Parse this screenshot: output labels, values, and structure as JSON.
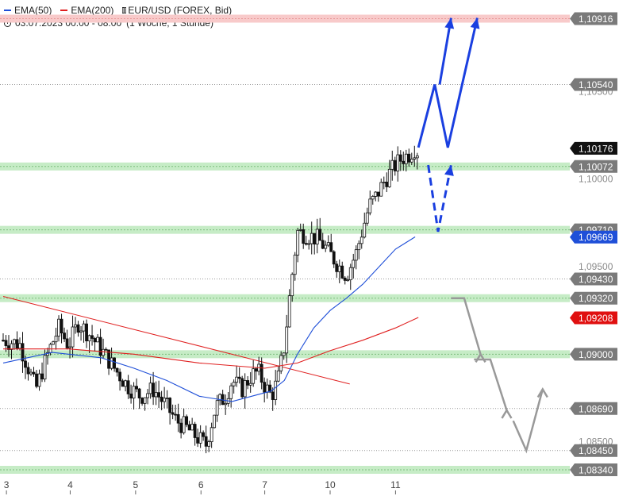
{
  "header": {
    "ema50_label": "EMA(50)",
    "ema200_label": "EMA(200)",
    "instrument": "EUR/USD (FOREX, Bid)",
    "period": "03.07.2023 00:00 - 08:00",
    "timeframe": "(1 Woche, 1 Stunde)"
  },
  "colors": {
    "ema50": "#1f4fd8",
    "ema200": "#e02020",
    "candle": "#111111",
    "support_zone": "#c6ecc6",
    "resistance_zone": "#f8caca",
    "forecast_up": "#1a3fe0",
    "forecast_down": "#999999",
    "last_price_bg": "#111111",
    "ema50_tag_bg": "#1f4fd8",
    "ema200_tag_bg": "#e01010",
    "level_tag_bg": "#7a7a7a"
  },
  "icons": [
    "candlestick-icon",
    "clock-icon"
  ],
  "chart_data": {
    "type": "candlestick",
    "title": "EUR/USD (FOREX, Bid)",
    "ylim": [
      1.0834,
      1.1095
    ],
    "x_tick_labels": [
      "3",
      "4",
      "5",
      "6",
      "7",
      "10",
      "11"
    ],
    "y_axis_ticks": [
      "1,09500",
      "1,09000",
      "1,08500",
      "1,10000",
      "1,10500"
    ],
    "price_levels": [
      {
        "label": "1,10916",
        "kind": "resistance-zone"
      },
      {
        "label": "1,10540",
        "kind": "level"
      },
      {
        "label": "1,10072",
        "kind": "support-zone"
      },
      {
        "label": "1,09710",
        "kind": "support-zone"
      },
      {
        "label": "1,09430",
        "kind": "level"
      },
      {
        "label": "1,09320",
        "kind": "support-zone"
      },
      {
        "label": "1,09000",
        "kind": "support-zone"
      },
      {
        "label": "1,08690",
        "kind": "level"
      },
      {
        "label": "1,08450",
        "kind": "level"
      },
      {
        "label": "1,08340",
        "kind": "support-zone"
      }
    ],
    "markers": [
      {
        "label": "1,10176",
        "kind": "last-price"
      },
      {
        "label": "1,09669",
        "kind": "ema50"
      },
      {
        "label": "1,09208",
        "kind": "ema200"
      }
    ],
    "price_path_close": [
      [
        0,
        1.0908
      ],
      [
        0.5,
        1.0906
      ],
      [
        1.0,
        1.088
      ],
      [
        1.4,
        1.0902
      ],
      [
        1.7,
        1.0915
      ],
      [
        2.0,
        1.0905
      ],
      [
        2.3,
        1.0918
      ],
      [
        2.7,
        1.091
      ],
      [
        3.1,
        1.09
      ],
      [
        3.4,
        1.0892
      ],
      [
        3.8,
        1.0882
      ],
      [
        4.2,
        1.0876
      ],
      [
        4.6,
        1.088
      ],
      [
        5.0,
        1.087
      ],
      [
        5.3,
        1.0862
      ],
      [
        5.6,
        1.0858
      ],
      [
        5.9,
        1.0853
      ],
      [
        6.2,
        1.0848
      ],
      [
        6.5,
        1.087
      ],
      [
        6.8,
        1.0876
      ],
      [
        7.0,
        1.0885
      ],
      [
        7.3,
        1.088
      ],
      [
        7.6,
        1.0888
      ],
      [
        7.8,
        1.089
      ],
      [
        8.0,
        1.0882
      ],
      [
        8.2,
        1.0876
      ],
      [
        8.4,
        1.0885
      ],
      [
        8.6,
        1.0905
      ],
      [
        8.8,
        1.094
      ],
      [
        9.0,
        1.097
      ],
      [
        9.3,
        1.0968
      ],
      [
        9.6,
        1.0966
      ],
      [
        9.9,
        1.096
      ],
      [
        10.2,
        1.0952
      ],
      [
        10.5,
        1.0945
      ],
      [
        10.8,
        1.0958
      ],
      [
        11.0,
        1.0972
      ],
      [
        11.2,
        1.0985
      ],
      [
        11.4,
        1.099
      ],
      [
        11.6,
        1.0997
      ],
      [
        11.8,
        1.1003
      ],
      [
        12.0,
        1.1008
      ],
      [
        12.2,
        1.1012
      ],
      [
        12.4,
        1.1014
      ],
      [
        12.6,
        1.1018
      ],
      [
        12.7,
        1.1015
      ]
    ],
    "ema50": [
      [
        0,
        1.0895
      ],
      [
        1.5,
        1.0901
      ],
      [
        3.0,
        1.0898
      ],
      [
        4.0,
        1.0892
      ],
      [
        5.0,
        1.0885
      ],
      [
        6.0,
        1.0876
      ],
      [
        7.0,
        1.0873
      ],
      [
        8.2,
        1.0879
      ],
      [
        8.6,
        1.0885
      ],
      [
        9.0,
        1.09
      ],
      [
        9.5,
        1.0915
      ],
      [
        10.0,
        1.0925
      ],
      [
        10.5,
        1.0932
      ],
      [
        11.0,
        1.094
      ],
      [
        11.5,
        1.095
      ],
      [
        12.0,
        1.096
      ],
      [
        12.6,
        1.0967
      ]
    ],
    "ema200": [
      [
        0,
        1.0903
      ],
      [
        2.0,
        1.0903
      ],
      [
        4.0,
        1.09
      ],
      [
        6.0,
        1.0895
      ],
      [
        8.0,
        1.0892
      ],
      [
        9.0,
        1.0895
      ],
      [
        10.0,
        1.0902
      ],
      [
        11.0,
        1.0908
      ],
      [
        12.0,
        1.0915
      ],
      [
        12.7,
        1.0921
      ]
    ],
    "trendline": [
      [
        0,
        1.0933
      ],
      [
        10.6,
        1.0883
      ]
    ],
    "forecast_up_solid": [
      [
        12.7,
        1.1018
      ],
      [
        13.2,
        1.1054
      ],
      [
        13.6,
        1.1018
      ],
      [
        14.5,
        1.1092
      ]
    ],
    "forecast_up_solid_second_arrow": [
      [
        13.35,
        1.1054
      ],
      [
        13.7,
        1.1092
      ]
    ],
    "forecast_up_dashed": [
      [
        13.0,
        1.1008
      ],
      [
        13.3,
        1.097
      ],
      [
        13.7,
        1.1008
      ]
    ],
    "forecast_down_path": [
      [
        13.7,
        1.0932
      ],
      [
        14.1,
        1.0932
      ],
      [
        14.6,
        1.09
      ]
    ],
    "forecast_down_path_2": [
      [
        14.4,
        1.0897
      ],
      [
        14.9,
        1.0897
      ],
      [
        15.4,
        1.0868
      ]
    ],
    "forecast_down_path_3": [
      [
        15.6,
        1.0862
      ],
      [
        16.0,
        1.0845
      ],
      [
        16.5,
        1.088
      ]
    ]
  }
}
